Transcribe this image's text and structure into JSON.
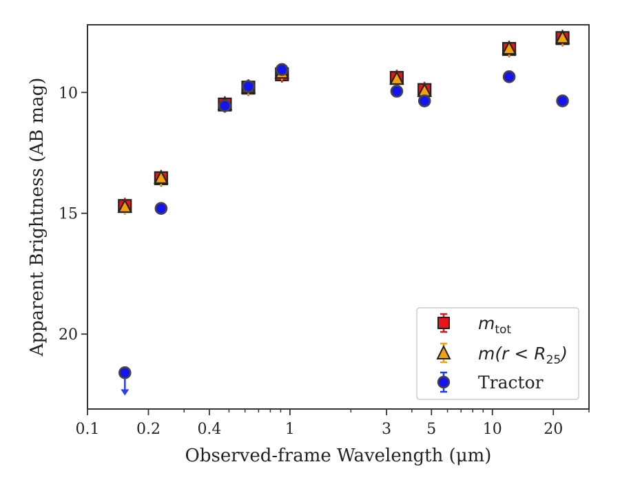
{
  "chart_data": {
    "type": "scatter",
    "title": "",
    "xlabel": "Observed-frame Wavelength (μm)",
    "ylabel": "Apparent Brightness (AB mag)",
    "xscale": "log",
    "xlim": [
      0.1,
      30
    ],
    "ylim": [
      23.1,
      7.2
    ],
    "y_inverted": true,
    "grid": false,
    "legend_position": "lower-right",
    "x_ticks": [
      {
        "value": 0.1,
        "label": "0.1"
      },
      {
        "value": 0.2,
        "label": "0.2"
      },
      {
        "value": 0.4,
        "label": "0.4"
      },
      {
        "value": 1,
        "label": "1"
      },
      {
        "value": 3,
        "label": "3"
      },
      {
        "value": 5,
        "label": "5"
      },
      {
        "value": 10,
        "label": "10"
      },
      {
        "value": 20,
        "label": "20"
      }
    ],
    "y_ticks": [
      {
        "value": 10,
        "label": "10"
      },
      {
        "value": 15,
        "label": "15"
      },
      {
        "value": 20,
        "label": "20"
      }
    ],
    "series": [
      {
        "name": "m_tot",
        "legend_label": {
          "base": "m",
          "sub": "tot"
        },
        "marker": "square",
        "color": "#e8141a",
        "edgecolor": "#222222",
        "errcolor": "#e8141a",
        "x": [
          0.153,
          0.231,
          0.477,
          0.623,
          0.913,
          3.37,
          4.62,
          12.1,
          22.2
        ],
        "y": [
          14.7,
          13.55,
          10.5,
          9.8,
          9.25,
          9.4,
          9.9,
          8.2,
          7.75
        ]
      },
      {
        "name": "m(r < R25)",
        "legend_label": {
          "base": "m(r < R",
          "sub": "25",
          "tail": ")"
        },
        "marker": "triangle",
        "color": "#f4a20c",
        "edgecolor": "#222222",
        "errcolor": "#f4a20c",
        "x": [
          0.153,
          0.231,
          0.477,
          0.623,
          0.913,
          3.37,
          4.62,
          12.1,
          22.2
        ],
        "y": [
          14.75,
          13.55,
          10.5,
          9.8,
          9.2,
          9.45,
          9.95,
          8.2,
          7.75
        ]
      },
      {
        "name": "Tractor",
        "legend_label": {
          "base": "Tractor"
        },
        "marker": "circle",
        "color": "#1414f0",
        "edgecolor": "#444444",
        "errcolor": "#1a3cf0",
        "x": [
          0.153,
          0.231,
          0.477,
          0.623,
          0.913,
          3.37,
          4.62,
          12.1,
          22.2
        ],
        "y": [
          21.6,
          14.8,
          10.55,
          9.75,
          9.05,
          9.95,
          10.35,
          9.35,
          10.35
        ],
        "upper_limit_index": 0
      }
    ]
  }
}
